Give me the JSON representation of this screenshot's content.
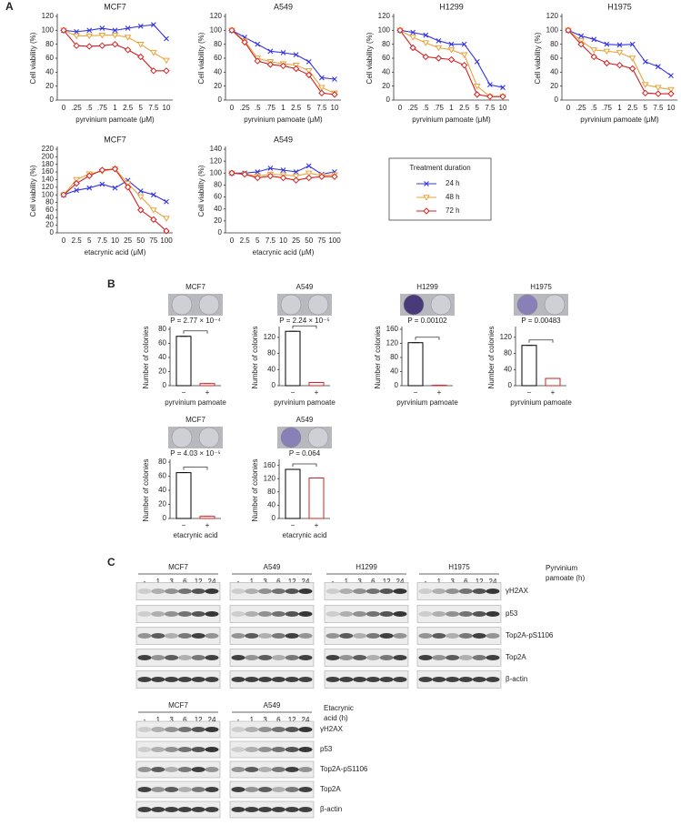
{
  "panel_labels": [
    "A",
    "B",
    "C"
  ],
  "chart_data": [
    {
      "type": "line",
      "title": "MCF7",
      "categories": [
        "0",
        ".25",
        ".5",
        ".75",
        "1",
        "2.5",
        "5",
        "7.5",
        "10"
      ],
      "series": [
        {
          "name": "24 h",
          "color": "#3535e6",
          "marker": "x",
          "values": [
            100,
            98,
            100,
            103,
            100,
            103,
            106,
            108,
            88
          ]
        },
        {
          "name": "48 h",
          "color": "#e8a33a",
          "marker": "v",
          "values": [
            100,
            92,
            92,
            93,
            93,
            90,
            80,
            68,
            57
          ]
        },
        {
          "name": "72 h",
          "color": "#d42020",
          "marker": "D",
          "values": [
            100,
            78,
            77,
            78,
            80,
            72,
            62,
            42,
            42
          ]
        }
      ],
      "ylim": [
        0,
        120
      ],
      "yticks": [
        0,
        20,
        40,
        60,
        80,
        100,
        120
      ],
      "y_label": "Cell viability (%)",
      "x_label": "pyrvinium pamoate (μM)"
    },
    {
      "type": "line",
      "title": "A549",
      "categories": [
        "0",
        ".25",
        ".5",
        ".75",
        "1",
        "2.5",
        "5",
        "7.5",
        "10"
      ],
      "series": [
        {
          "name": "24 h",
          "color": "#3535e6",
          "marker": "x",
          "values": [
            100,
            90,
            80,
            70,
            68,
            65,
            55,
            32,
            30
          ]
        },
        {
          "name": "48 h",
          "color": "#e8a33a",
          "marker": "v",
          "values": [
            100,
            85,
            60,
            55,
            52,
            50,
            42,
            18,
            10
          ]
        },
        {
          "name": "72 h",
          "color": "#d42020",
          "marker": "D",
          "values": [
            100,
            83,
            56,
            51,
            49,
            45,
            36,
            10,
            8
          ]
        }
      ],
      "ylim": [
        0,
        120
      ],
      "yticks": [
        0,
        20,
        40,
        60,
        80,
        100,
        120
      ],
      "y_label": "Cell viability (%)",
      "x_label": "pyrvinium pamoate (μM)"
    },
    {
      "type": "line",
      "title": "H1299",
      "categories": [
        "0",
        ".25",
        ".5",
        ".75",
        "1",
        "2.5",
        "5",
        "7.5",
        "10"
      ],
      "series": [
        {
          "name": "24 h",
          "color": "#3535e6",
          "marker": "x",
          "values": [
            100,
            97,
            93,
            85,
            80,
            80,
            55,
            22,
            18
          ]
        },
        {
          "name": "48 h",
          "color": "#e8a33a",
          "marker": "v",
          "values": [
            100,
            90,
            82,
            75,
            72,
            65,
            20,
            5,
            5
          ]
        },
        {
          "name": "72 h",
          "color": "#d42020",
          "marker": "D",
          "values": [
            100,
            75,
            62,
            60,
            58,
            50,
            8,
            5,
            5
          ]
        }
      ],
      "ylim": [
        0,
        120
      ],
      "yticks": [
        0,
        20,
        40,
        60,
        80,
        100,
        120
      ],
      "y_label": "Cell viability (%)",
      "x_label": "pyrvinium pamoate (μM)"
    },
    {
      "type": "line",
      "title": "H1975",
      "categories": [
        "0",
        ".25",
        ".5",
        ".75",
        "1",
        "2.5",
        "5",
        "7.5",
        "10"
      ],
      "series": [
        {
          "name": "24 h",
          "color": "#3535e6",
          "marker": "x",
          "values": [
            100,
            92,
            87,
            80,
            79,
            80,
            55,
            48,
            35
          ]
        },
        {
          "name": "48 h",
          "color": "#e8a33a",
          "marker": "v",
          "values": [
            100,
            85,
            72,
            70,
            68,
            60,
            22,
            18,
            15
          ]
        },
        {
          "name": "72 h",
          "color": "#d42020",
          "marker": "D",
          "values": [
            100,
            80,
            62,
            53,
            50,
            45,
            10,
            9,
            9
          ]
        }
      ],
      "ylim": [
        0,
        120
      ],
      "yticks": [
        0,
        20,
        40,
        60,
        80,
        100,
        120
      ],
      "y_label": "Cell viability (%)",
      "x_label": "pyrvinium pamoate (μM)"
    },
    {
      "type": "line",
      "title": "MCF7",
      "categories": [
        "0",
        "2.5",
        "5",
        "7.5",
        "10",
        "25",
        "50",
        "75",
        "100"
      ],
      "series": [
        {
          "name": "24 h",
          "color": "#3535e6",
          "marker": "x",
          "values": [
            100,
            112,
            118,
            128,
            118,
            138,
            110,
            100,
            82
          ]
        },
        {
          "name": "48 h",
          "color": "#e8a33a",
          "marker": "v",
          "values": [
            100,
            140,
            155,
            162,
            168,
            130,
            95,
            60,
            38
          ]
        },
        {
          "name": "72 h",
          "color": "#d42020",
          "marker": "D",
          "values": [
            100,
            130,
            150,
            165,
            168,
            120,
            60,
            35,
            5
          ]
        }
      ],
      "ylim": [
        0,
        220
      ],
      "yticks": [
        0,
        20,
        40,
        60,
        80,
        100,
        120,
        140,
        160,
        180,
        200,
        220
      ],
      "y_label": "Cell viability (%)",
      "x_label": "etacrynic acid (μM)"
    },
    {
      "type": "line",
      "title": "A549",
      "categories": [
        "0",
        "2.5",
        "5",
        "7.5",
        "10",
        "25",
        "50",
        "75",
        "100"
      ],
      "series": [
        {
          "name": "24 h",
          "color": "#3535e6",
          "marker": "x",
          "values": [
            100,
            100,
            102,
            108,
            105,
            102,
            112,
            98,
            102
          ]
        },
        {
          "name": "48 h",
          "color": "#e8a33a",
          "marker": "v",
          "values": [
            100,
            98,
            95,
            98,
            97,
            95,
            100,
            96,
            97
          ]
        },
        {
          "name": "72 h",
          "color": "#d42020",
          "marker": "D",
          "values": [
            100,
            98,
            92,
            95,
            92,
            88,
            92,
            94,
            94
          ]
        }
      ],
      "ylim": [
        0,
        140
      ],
      "yticks": [
        0,
        20,
        40,
        60,
        80,
        100,
        120,
        140
      ],
      "y_label": "Cell viability (%)",
      "x_label": "etacrynic acid (μM)",
      "legend_title": "Treatment duration"
    },
    {
      "type": "bar",
      "title": "MCF7",
      "categories": [
        "−",
        "+"
      ],
      "values": [
        70,
        3
      ],
      "colors": [
        "#000000",
        "#d42020"
      ],
      "ylim": [
        0,
        80
      ],
      "yticks": [
        0,
        20,
        40,
        60,
        80
      ],
      "y_label": "Number of colonies",
      "x_label": "pyrvinium pamoate",
      "annotation": "P = 2.77 × 10⁻⁴"
    },
    {
      "type": "bar",
      "title": "A549",
      "categories": [
        "−",
        "+"
      ],
      "values": [
        135,
        8
      ],
      "colors": [
        "#000000",
        "#d42020"
      ],
      "ylim": [
        0,
        140
      ],
      "yticks": [
        0,
        40,
        80,
        120
      ],
      "y_label": "Number of colonies",
      "x_label": "pyrvinium pamoate",
      "annotation": "P = 2.24 × 10⁻⁵"
    },
    {
      "type": "bar",
      "title": "H1299",
      "categories": [
        "−",
        "+"
      ],
      "values": [
        122,
        1
      ],
      "colors": [
        "#000000",
        "#d42020"
      ],
      "ylim": [
        0,
        160
      ],
      "yticks": [
        0,
        40,
        80,
        120,
        160
      ],
      "y_label": "Number of colonies",
      "x_label": "pyrvinium pamoate",
      "annotation": "P = 0.00102"
    },
    {
      "type": "bar",
      "title": "H1975",
      "categories": [
        "−",
        "+"
      ],
      "values": [
        100,
        18
      ],
      "colors": [
        "#000000",
        "#d42020"
      ],
      "ylim": [
        0,
        140
      ],
      "yticks": [
        0,
        40,
        80,
        120
      ],
      "y_label": "Number of colonies",
      "x_label": "pyrvinium pamoate",
      "annotation": "P = 0.00483"
    },
    {
      "type": "bar",
      "title": "MCF7",
      "categories": [
        "−",
        "+"
      ],
      "values": [
        65,
        3
      ],
      "colors": [
        "#000000",
        "#d42020"
      ],
      "ylim": [
        0,
        80
      ],
      "yticks": [
        0,
        20,
        40,
        60,
        80
      ],
      "y_label": "Number of colonies",
      "x_label": "etacrynic acid",
      "annotation": "P = 4.03 × 10⁻⁵"
    },
    {
      "type": "bar",
      "title": "A549",
      "categories": [
        "−",
        "+"
      ],
      "values": [
        148,
        122
      ],
      "colors": [
        "#000000",
        "#d42020"
      ],
      "ylim": [
        0,
        170
      ],
      "yticks": [
        0,
        40,
        80,
        120,
        160
      ],
      "y_label": "Number of colonies",
      "x_label": "etacrynic acid",
      "annotation": "P = 0.064"
    }
  ],
  "blots": [
    {
      "treatment_label": [
        "Pyrvinium",
        "pamoate (h)"
      ],
      "cell_lines": [
        "MCF7",
        "A549",
        "H1299",
        "H1975"
      ],
      "timepoints": [
        "-",
        "1",
        "3",
        "6",
        "12",
        "24"
      ],
      "proteins": [
        "γH2AX",
        "p53",
        "Top2A-pS1106",
        "Top2A",
        "β-actin"
      ]
    },
    {
      "treatment_label": [
        "Etacrynic",
        "acid (h)"
      ],
      "cell_lines": [
        "MCF7",
        "A549"
      ],
      "timepoints": [
        "-",
        "1",
        "3",
        "6",
        "12",
        "24"
      ],
      "proteins": [
        "γH2AX",
        "p53",
        "Top2A-pS1106",
        "Top2A",
        "β-actin"
      ]
    }
  ]
}
